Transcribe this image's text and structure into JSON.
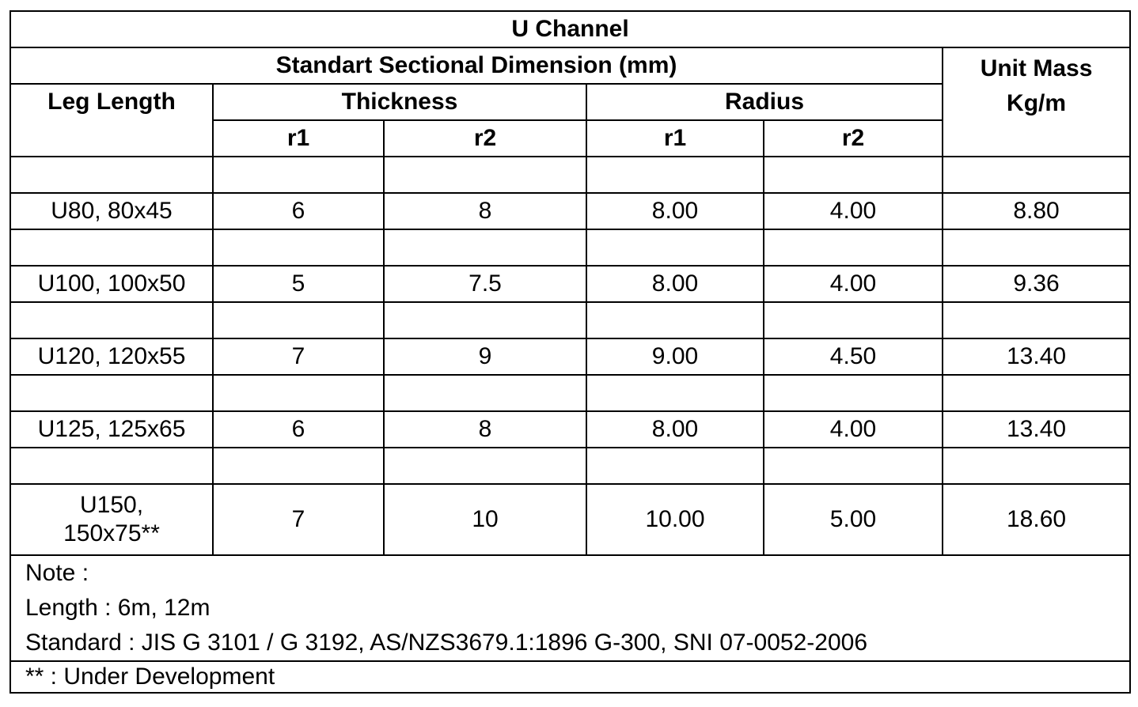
{
  "table": {
    "title": "U Channel",
    "section_header": "Standart Sectional Dimension (mm)",
    "unit_mass_header": "Unit Mass\nKg/m",
    "unit_mass_line1": "Unit Mass",
    "unit_mass_line2": "Kg/m",
    "leg_length_header": "Leg Length",
    "thickness_header": "Thickness",
    "radius_header": "Radius",
    "sub_headers": [
      "r1",
      "r2",
      "r1",
      "r2"
    ],
    "rows": [
      {
        "leg": "U80, 80x45",
        "t_r1": "6",
        "t_r2": "8",
        "r_r1": "8.00",
        "r_r2": "4.00",
        "mass": "8.80"
      },
      {
        "leg": "U100, 100x50",
        "t_r1": "5",
        "t_r2": "7.5",
        "r_r1": "8.00",
        "r_r2": "4.00",
        "mass": "9.36"
      },
      {
        "leg": "U120, 120x55",
        "t_r1": "7",
        "t_r2": "9",
        "r_r1": "9.00",
        "r_r2": "4.50",
        "mass": "13.40"
      },
      {
        "leg": "U125, 125x65",
        "t_r1": "6",
        "t_r2": "8",
        "r_r1": "8.00",
        "r_r2": "4.00",
        "mass": "13.40"
      },
      {
        "leg": "U150, 150x75**",
        "t_r1": "7",
        "t_r2": "10",
        "r_r1": "10.00",
        "r_r2": "5.00",
        "mass": "18.60"
      }
    ],
    "notes": [
      "Note :",
      "Length : 6m, 12m",
      "Standard : JIS G 3101 / G 3192, AS/NZS3679.1:1896 G-300, SNI 07-0052-2006"
    ],
    "footnote": "** : Under Development"
  }
}
